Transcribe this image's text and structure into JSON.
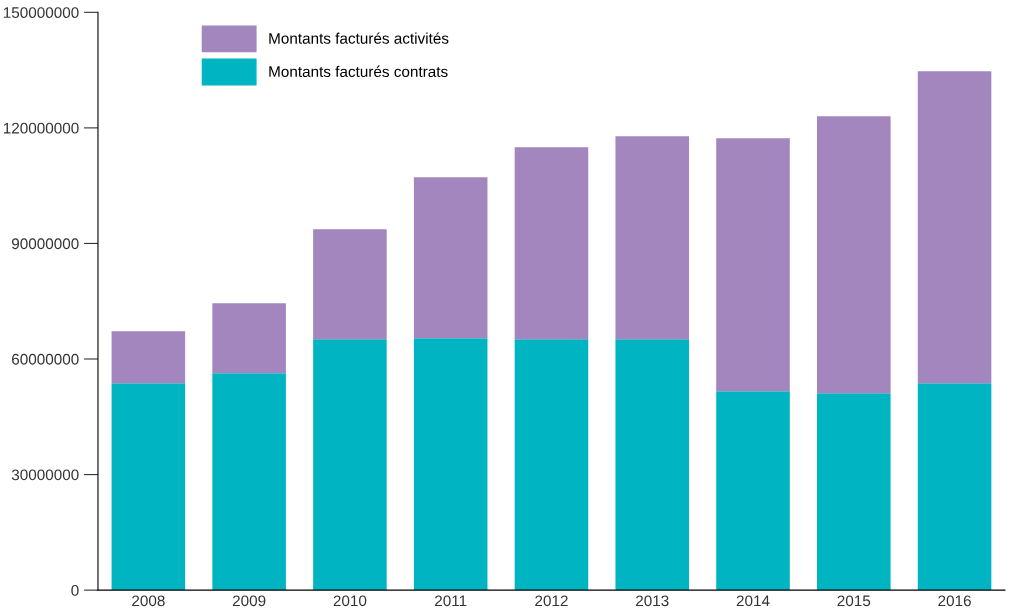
{
  "chart_data": {
    "type": "bar",
    "stacked": true,
    "categories": [
      "2008",
      "2009",
      "2010",
      "2011",
      "2012",
      "2013",
      "2014",
      "2015",
      "2016"
    ],
    "series": [
      {
        "name": "Montants facturés contrats",
        "color": "#00b5c1",
        "values": [
          53700000,
          56300000,
          65100000,
          65400000,
          65100000,
          65100000,
          51600000,
          51100000,
          53700000
        ]
      },
      {
        "name": "Montants facturés activités",
        "color": "#a286bd",
        "values": [
          13500000,
          18200000,
          28600000,
          41800000,
          49900000,
          52700000,
          65700000,
          71900000,
          81000000
        ]
      }
    ],
    "ylim": [
      0,
      150000000
    ],
    "yticks": [
      0,
      30000000,
      60000000,
      90000000,
      120000000,
      150000000
    ],
    "grid": false,
    "legend": "top left"
  }
}
